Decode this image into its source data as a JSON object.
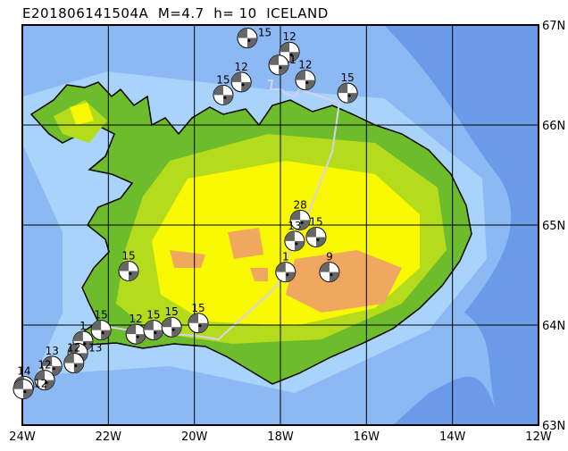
{
  "title": {
    "event_id": "E201806141504A",
    "magnitude": "M=4.7",
    "depth": "h= 10",
    "region": "ICELAND"
  },
  "map": {
    "lon_range": [
      -24,
      -12
    ],
    "lat_range": [
      63,
      67
    ],
    "grid": true,
    "colors": {
      "deep_ocean": "#6a9ae8",
      "ocean": "#8cb8f4",
      "shelf": "#a8d4fc",
      "lowland": "#6cbc2c",
      "midland": "#b4dc1c",
      "highland": "#f8f800",
      "peak": "#f0a860",
      "plate_boundary": "#d8d0f0"
    },
    "lon_labels": [
      "24W",
      "22W",
      "20W",
      "18W",
      "16W",
      "14W",
      "12W"
    ],
    "lat_labels": [
      "67N",
      "66N",
      "65N",
      "64N",
      "63N"
    ]
  },
  "events": [
    {
      "lon": -18.77,
      "lat": 66.87,
      "depth": "15"
    },
    {
      "lon": -18.91,
      "lat": 66.43,
      "depth": "12"
    },
    {
      "lon": -19.33,
      "lat": 66.3,
      "depth": "15"
    },
    {
      "lon": -17.79,
      "lat": 66.73,
      "depth": "12"
    },
    {
      "lon": -18.04,
      "lat": 66.6,
      "depth": "1"
    },
    {
      "lon": -17.42,
      "lat": 66.45,
      "depth": "12"
    },
    {
      "lon": -16.44,
      "lat": 66.32,
      "depth": "15"
    },
    {
      "lon": -17.54,
      "lat": 65.05,
      "depth": "28"
    },
    {
      "lon": -17.17,
      "lat": 64.88,
      "depth": "15"
    },
    {
      "lon": -17.67,
      "lat": 64.84,
      "depth": "13"
    },
    {
      "lon": -17.88,
      "lat": 64.53,
      "depth": "1"
    },
    {
      "lon": -16.86,
      "lat": 64.53,
      "depth": "9"
    },
    {
      "lon": -21.53,
      "lat": 64.54,
      "depth": "15"
    },
    {
      "lon": -22.17,
      "lat": 63.95,
      "depth": "15"
    },
    {
      "lon": -21.36,
      "lat": 63.91,
      "depth": "12"
    },
    {
      "lon": -20.95,
      "lat": 63.95,
      "depth": "15"
    },
    {
      "lon": -20.53,
      "lat": 63.98,
      "depth": "15"
    },
    {
      "lon": -19.91,
      "lat": 64.02,
      "depth": "15"
    },
    {
      "lon": -22.59,
      "lat": 63.84,
      "depth": "1"
    },
    {
      "lon": -22.71,
      "lat": 63.72,
      "depth": "13"
    },
    {
      "lon": -22.8,
      "lat": 63.62,
      "depth": "12"
    },
    {
      "lon": -23.31,
      "lat": 63.59,
      "depth": "13"
    },
    {
      "lon": -23.48,
      "lat": 63.45,
      "depth": "12"
    },
    {
      "lon": -23.96,
      "lat": 63.39,
      "depth": "14"
    },
    {
      "lon": -23.98,
      "lat": 63.36,
      "depth": "12"
    }
  ]
}
